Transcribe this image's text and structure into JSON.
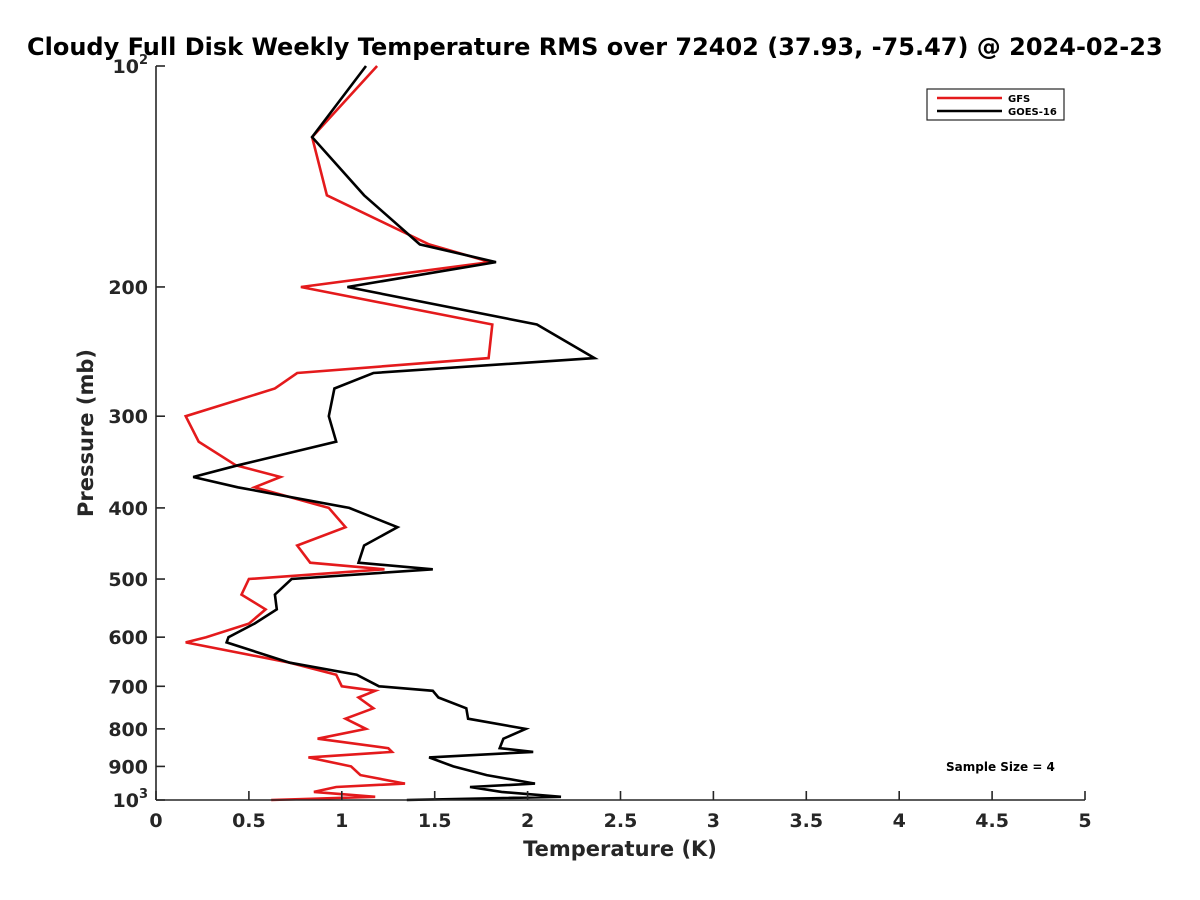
{
  "chart_data": {
    "type": "line",
    "title": "Cloudy Full Disk Weekly Temperature RMS over 72402 (37.93, -75.47) @ 2024-02-23",
    "xlabel": "Temperature (K)",
    "ylabel": "Pressure (mb)",
    "xlim": [
      0,
      5
    ],
    "ylim": [
      100,
      1000
    ],
    "y_scale": "log",
    "y_reversed": true,
    "x_ticks": [
      "0",
      "0.5",
      "1",
      "1.5",
      "2",
      "2.5",
      "3",
      "3.5",
      "4",
      "4.5",
      "5"
    ],
    "y_ticks": [
      {
        "value": 100,
        "base": "10",
        "exp": "2"
      },
      {
        "value": 200,
        "label": "200"
      },
      {
        "value": 300,
        "label": "300"
      },
      {
        "value": 400,
        "label": "400"
      },
      {
        "value": 500,
        "label": "500"
      },
      {
        "value": 600,
        "label": "600"
      },
      {
        "value": 700,
        "label": "700"
      },
      {
        "value": 800,
        "label": "800"
      },
      {
        "value": 900,
        "label": "900"
      },
      {
        "value": 1000,
        "base": "10",
        "exp": "3"
      }
    ],
    "grid": false,
    "legend_position": "top-right",
    "annotation": "Sample Size = 4",
    "series": [
      {
        "name": "GFS",
        "color": "#e41a1c",
        "points": [
          [
            1.19,
            100
          ],
          [
            0.84,
            125
          ],
          [
            0.92,
            150
          ],
          [
            1.47,
            175
          ],
          [
            1.8,
            185
          ],
          [
            0.78,
            200
          ],
          [
            1.81,
            225
          ],
          [
            1.79,
            250
          ],
          [
            0.76,
            262
          ],
          [
            0.64,
            275
          ],
          [
            0.16,
            300
          ],
          [
            0.23,
            325
          ],
          [
            0.43,
            350
          ],
          [
            0.67,
            363
          ],
          [
            0.53,
            375
          ],
          [
            0.93,
            400
          ],
          [
            1.02,
            425
          ],
          [
            0.76,
            450
          ],
          [
            0.83,
            475
          ],
          [
            1.23,
            485
          ],
          [
            0.5,
            500
          ],
          [
            0.46,
            525
          ],
          [
            0.59,
            550
          ],
          [
            0.5,
            575
          ],
          [
            0.27,
            600
          ],
          [
            0.16,
            610
          ],
          [
            0.72,
            650
          ],
          [
            0.97,
            675
          ],
          [
            1.0,
            700
          ],
          [
            1.18,
            710
          ],
          [
            1.09,
            725
          ],
          [
            1.17,
            750
          ],
          [
            1.02,
            775
          ],
          [
            1.13,
            800
          ],
          [
            0.87,
            825
          ],
          [
            1.25,
            850
          ],
          [
            1.27,
            860
          ],
          [
            0.82,
            875
          ],
          [
            1.05,
            900
          ],
          [
            1.1,
            925
          ],
          [
            1.34,
            950
          ],
          [
            0.97,
            960
          ],
          [
            0.85,
            975
          ],
          [
            1.18,
            990
          ],
          [
            0.62,
            1000
          ]
        ]
      },
      {
        "name": "GOES-16",
        "color": "#000000",
        "points": [
          [
            1.13,
            100
          ],
          [
            0.84,
            125
          ],
          [
            1.12,
            150
          ],
          [
            1.42,
            175
          ],
          [
            1.83,
            185
          ],
          [
            1.03,
            200
          ],
          [
            2.05,
            225
          ],
          [
            2.36,
            250
          ],
          [
            1.17,
            262
          ],
          [
            0.96,
            275
          ],
          [
            0.93,
            300
          ],
          [
            0.97,
            325
          ],
          [
            0.44,
            350
          ],
          [
            0.2,
            363
          ],
          [
            0.44,
            375
          ],
          [
            1.04,
            400
          ],
          [
            1.3,
            425
          ],
          [
            1.12,
            450
          ],
          [
            1.09,
            475
          ],
          [
            1.49,
            485
          ],
          [
            0.73,
            500
          ],
          [
            0.64,
            525
          ],
          [
            0.65,
            550
          ],
          [
            0.53,
            575
          ],
          [
            0.39,
            600
          ],
          [
            0.38,
            610
          ],
          [
            0.72,
            650
          ],
          [
            1.08,
            675
          ],
          [
            1.2,
            700
          ],
          [
            1.49,
            710
          ],
          [
            1.52,
            725
          ],
          [
            1.67,
            750
          ],
          [
            1.68,
            775
          ],
          [
            1.99,
            800
          ],
          [
            1.87,
            825
          ],
          [
            1.85,
            850
          ],
          [
            2.03,
            860
          ],
          [
            1.47,
            875
          ],
          [
            1.6,
            900
          ],
          [
            1.78,
            925
          ],
          [
            2.04,
            950
          ],
          [
            1.69,
            960
          ],
          [
            1.86,
            975
          ],
          [
            2.18,
            990
          ],
          [
            1.35,
            1000
          ]
        ]
      }
    ]
  }
}
